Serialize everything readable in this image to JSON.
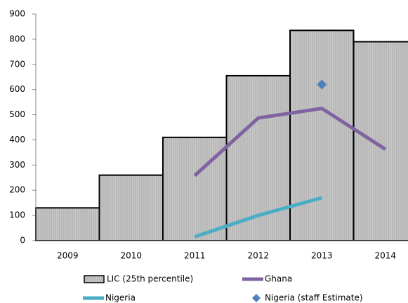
{
  "chart_data": {
    "type": "bar",
    "categories": [
      "2009",
      "2010",
      "2011",
      "2012",
      "2013",
      "2014"
    ],
    "series": [
      {
        "name": "LIC (25th percentile)",
        "type": "bar",
        "color": "#c0c0c0",
        "values": [
          130,
          260,
          410,
          655,
          835,
          790
        ]
      },
      {
        "name": "Ghana",
        "type": "line",
        "color": "#8064a2",
        "values": [
          null,
          null,
          258,
          487,
          525,
          363
        ]
      },
      {
        "name": "Nigeria",
        "type": "line",
        "color": "#4bacc6",
        "values": [
          null,
          null,
          15,
          100,
          170,
          null
        ]
      },
      {
        "name": "Nigeria (staff Estimate)",
        "type": "scatter",
        "color": "#4f81bd",
        "values": [
          null,
          null,
          null,
          null,
          620,
          null
        ]
      }
    ],
    "ylim": [
      0,
      900
    ],
    "yticks": [
      0,
      100,
      200,
      300,
      400,
      500,
      600,
      700,
      800,
      900
    ]
  }
}
